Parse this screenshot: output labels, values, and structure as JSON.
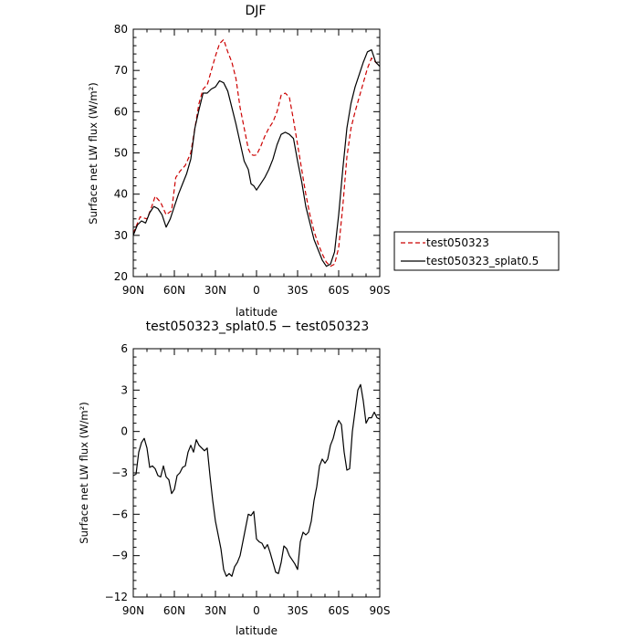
{
  "chart_data": [
    {
      "type": "line",
      "title": "DJF",
      "xlabel": "latitude",
      "ylabel": "Surface net LW flux (W/m²)",
      "xlim": [
        90,
        -90
      ],
      "ylim": [
        20,
        80
      ],
      "x_ticks": [
        90,
        60,
        30,
        0,
        -30,
        -60,
        -90
      ],
      "x_tick_labels": [
        "90N",
        "60N",
        "30N",
        "0",
        "30S",
        "60S",
        "90S"
      ],
      "y_ticks": [
        20,
        30,
        40,
        50,
        60,
        70,
        80
      ],
      "y_tick_labels": [
        "20",
        "30",
        "40",
        "50",
        "60",
        "70",
        "80"
      ],
      "legend_position": "right",
      "series": [
        {
          "name": "test050323",
          "color": "#cc0000",
          "style": "dashed",
          "x": [
            90,
            85,
            80,
            77,
            74,
            70,
            66,
            62,
            59,
            56,
            52,
            48,
            45,
            42,
            39,
            36,
            33,
            30,
            27,
            24,
            21,
            18,
            15,
            12,
            9,
            6,
            4,
            2,
            0,
            -3,
            -6,
            -9,
            -12,
            -15,
            -18,
            -21,
            -24,
            -27,
            -30,
            -33,
            -36,
            -39,
            -42,
            -45,
            -48,
            -51,
            -54,
            -57,
            -60,
            -63,
            -66,
            -69,
            -72,
            -75,
            -78,
            -81,
            -84,
            -87,
            -90
          ],
          "values": [
            30.5,
            34.5,
            34,
            36.5,
            39.5,
            38,
            35,
            36,
            44,
            45.5,
            47,
            50,
            56,
            62,
            65.5,
            66.5,
            70,
            73.5,
            76.5,
            77.5,
            74.5,
            72,
            68,
            61,
            56,
            51,
            49.6,
            49.4,
            49.5,
            51.5,
            54,
            56,
            57.5,
            60,
            64,
            64.5,
            63.5,
            58,
            52,
            46,
            40,
            35,
            31,
            28,
            25.5,
            23.5,
            22.5,
            23,
            27,
            37,
            49,
            56,
            60,
            63.5,
            67,
            70.5,
            73,
            72,
            71
          ]
        },
        {
          "name": "test050323_splat0.5",
          "color": "#000000",
          "style": "solid",
          "x": [
            90,
            87,
            84,
            81,
            78,
            75,
            72,
            69,
            66,
            63,
            60,
            57,
            54,
            51,
            48,
            45,
            42,
            39,
            36,
            33,
            30,
            27,
            24,
            21,
            18,
            15,
            12,
            9,
            6,
            4,
            2,
            0,
            -3,
            -6,
            -9,
            -12,
            -15,
            -18,
            -21,
            -24,
            -27,
            -30,
            -33,
            -36,
            -39,
            -42,
            -45,
            -48,
            -51,
            -54,
            -57,
            -60,
            -63,
            -66,
            -69,
            -72,
            -75,
            -78,
            -81,
            -84,
            -87,
            -90
          ],
          "values": [
            30,
            32.5,
            33.5,
            33,
            35.5,
            37,
            36.5,
            35,
            32,
            34,
            37,
            40,
            42.5,
            45,
            48.5,
            56,
            60.5,
            64.5,
            64.5,
            65.5,
            66,
            67.5,
            67,
            65,
            61,
            57,
            52.5,
            48,
            46,
            42.5,
            42,
            41,
            42.5,
            44,
            46,
            48.5,
            52,
            54.5,
            55,
            54.5,
            53.5,
            48,
            43,
            37,
            33,
            29,
            26.5,
            24,
            22.5,
            23,
            26,
            35,
            46,
            56,
            62,
            66,
            69,
            72,
            74.5,
            75,
            72,
            71
          ]
        }
      ]
    },
    {
      "type": "line",
      "title": "test050323_splat0.5 − test050323",
      "xlabel": "latitude",
      "ylabel": "Surface net LW flux (W/m²)",
      "xlim": [
        90,
        -90
      ],
      "ylim": [
        -12,
        6
      ],
      "x_ticks": [
        90,
        60,
        30,
        0,
        -30,
        -60,
        -90
      ],
      "x_tick_labels": [
        "90N",
        "60N",
        "30N",
        "0",
        "30S",
        "60S",
        "90S"
      ],
      "y_ticks": [
        6,
        3,
        0,
        -3,
        -6,
        -9,
        -12
      ],
      "y_tick_labels": [
        "6",
        "3",
        "0",
        "−3",
        "−6",
        "−9",
        "−12"
      ],
      "series": [
        {
          "color": "#000000",
          "style": "solid",
          "x": [
            90,
            88,
            86,
            84,
            82,
            80,
            78,
            76,
            74,
            72,
            70,
            68,
            66,
            64,
            62,
            60,
            58,
            56,
            54,
            52,
            50,
            48,
            46,
            44,
            42,
            40,
            38,
            36,
            34,
            32,
            30,
            28,
            26,
            24,
            22,
            20,
            18,
            16,
            14,
            12,
            10,
            8,
            6,
            4,
            2,
            0,
            -2,
            -4,
            -6,
            -8,
            -10,
            -12,
            -14,
            -16,
            -18,
            -20,
            -22,
            -24,
            -26,
            -28,
            -30,
            -32,
            -34,
            -36,
            -38,
            -40,
            -42,
            -44,
            -46,
            -48,
            -50,
            -52,
            -54,
            -56,
            -58,
            -60,
            -62,
            -64,
            -66,
            -68,
            -70,
            -72,
            -74,
            -76,
            -78,
            -80,
            -82,
            -84,
            -86,
            -88,
            -90
          ],
          "values": [
            -3.2,
            -3.1,
            -1.5,
            -0.8,
            -0.5,
            -1.2,
            -2.6,
            -2.5,
            -2.7,
            -3.2,
            -3.3,
            -2.5,
            -3.3,
            -3.5,
            -4.5,
            -4.2,
            -3.2,
            -3,
            -2.6,
            -2.5,
            -1.5,
            -1,
            -1.5,
            -0.6,
            -1,
            -1.2,
            -1.4,
            -1.2,
            -3.2,
            -5,
            -6.5,
            -7.5,
            -8.5,
            -10,
            -10.5,
            -10.3,
            -10.5,
            -9.8,
            -9.5,
            -9,
            -8,
            -7,
            -6,
            -6.1,
            -5.8,
            -7.8,
            -8,
            -8.1,
            -8.5,
            -8.2,
            -8.8,
            -9.5,
            -10.2,
            -10.3,
            -9.5,
            -8.3,
            -8.5,
            -9,
            -9.3,
            -9.6,
            -10,
            -8,
            -7.3,
            -7.5,
            -7.3,
            -6.5,
            -5,
            -4,
            -2.5,
            -2,
            -2.3,
            -2,
            -1,
            -0.5,
            0.3,
            0.8,
            0.5,
            -1.5,
            -2.8,
            -2.7,
            0,
            1.5,
            3,
            3.4,
            2.2,
            0.6,
            1,
            1,
            1.4,
            1,
            0.9
          ]
        }
      ]
    }
  ]
}
